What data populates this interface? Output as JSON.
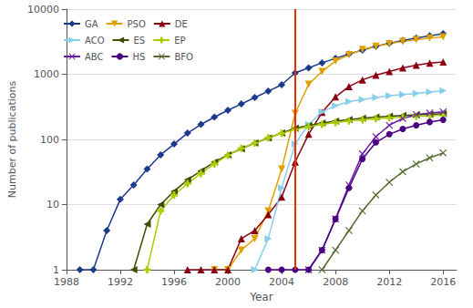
{
  "chart_data": {
    "type": "line",
    "xlabel": "Year",
    "ylabel": "Number of publications",
    "xlim": [
      1988,
      2017
    ],
    "xticks": [
      1988,
      1992,
      1996,
      2000,
      2004,
      2008,
      2012,
      2016
    ],
    "ylim": [
      1,
      10000
    ],
    "yticks": [
      1,
      10,
      100,
      1000,
      10000
    ],
    "log": "y",
    "grid": true,
    "legend": "upper left",
    "vlines": [
      {
        "x": 2005,
        "color": "#e63000"
      }
    ],
    "series": [
      {
        "name": "GA",
        "color": "#1a3a8c",
        "marker": "diamond",
        "x": [
          1989,
          1990,
          1991,
          1992,
          1993,
          1994,
          1995,
          1996,
          1997,
          1998,
          1999,
          2000,
          2001,
          2002,
          2003,
          2004,
          2005,
          2006,
          2007,
          2008,
          2009,
          2010,
          2011,
          2012,
          2013,
          2014,
          2015,
          2016
        ],
        "values": [
          1,
          1,
          4,
          12,
          20,
          35,
          58,
          85,
          125,
          170,
          220,
          280,
          350,
          440,
          550,
          690,
          1050,
          1250,
          1500,
          1750,
          2050,
          2350,
          2700,
          3000,
          3300,
          3600,
          3900,
          4200
        ]
      },
      {
        "name": "PSO",
        "color": "#e0a000",
        "marker": "triangle-down",
        "x": [
          1999,
          2000,
          2001,
          2002,
          2003,
          2004,
          2005,
          2006,
          2007,
          2008,
          2009,
          2010,
          2011,
          2012,
          2013,
          2014,
          2015,
          2016
        ],
        "values": [
          1,
          1,
          2,
          3,
          8,
          35,
          250,
          700,
          1100,
          1600,
          2000,
          2400,
          2700,
          2950,
          3200,
          3400,
          3600,
          3750
        ]
      },
      {
        "name": "DE",
        "color": "#8b0010",
        "marker": "triangle-up",
        "x": [
          1997,
          1998,
          1999,
          2000,
          2001,
          2002,
          2003,
          2004,
          2005,
          2006,
          2007,
          2008,
          2009,
          2010,
          2011,
          2012,
          2013,
          2014,
          2015,
          2016
        ],
        "values": [
          1,
          1,
          1,
          1,
          3,
          4,
          7,
          13,
          45,
          120,
          260,
          450,
          650,
          820,
          970,
          1100,
          1250,
          1380,
          1480,
          1550
        ]
      },
      {
        "name": "ACO",
        "color": "#87ceeb",
        "marker": "triangle-right",
        "x": [
          2002,
          2003,
          2004,
          2005,
          2006,
          2007,
          2008,
          2009,
          2010,
          2011,
          2012,
          2013,
          2014,
          2015,
          2016
        ],
        "values": [
          1,
          3,
          18,
          85,
          170,
          265,
          330,
          380,
          410,
          440,
          470,
          490,
          510,
          535,
          560
        ]
      },
      {
        "name": "ES",
        "color": "#3d4f00",
        "marker": "triangle-left",
        "x": [
          1993,
          1994,
          1995,
          1996,
          1997,
          1998,
          1999,
          2000,
          2001,
          2002,
          2003,
          2004,
          2005,
          2006,
          2007,
          2008,
          2009,
          2010,
          2011,
          2012,
          2013,
          2014,
          2015,
          2016
        ],
        "values": [
          1,
          5,
          10,
          16,
          24,
          33,
          45,
          58,
          72,
          88,
          105,
          125,
          148,
          163,
          178,
          191,
          202,
          212,
          220,
          227,
          233,
          238,
          243,
          248
        ]
      },
      {
        "name": "EP",
        "color": "#aacc00",
        "marker": "plus",
        "x": [
          1994,
          1995,
          1996,
          1997,
          1998,
          1999,
          2000,
          2001,
          2002,
          2003,
          2004,
          2005,
          2006,
          2007,
          2008,
          2009,
          2010,
          2011,
          2012,
          2013,
          2014,
          2015,
          2016
        ],
        "values": [
          1,
          8,
          14,
          21,
          30,
          42,
          57,
          73,
          88,
          106,
          124,
          142,
          157,
          170,
          182,
          192,
          200,
          208,
          215,
          221,
          226,
          231,
          236
        ]
      },
      {
        "name": "ABC",
        "color": "#6a1aaa",
        "marker": "x",
        "x": [
          2006,
          2007,
          2008,
          2009,
          2010,
          2011,
          2012,
          2013,
          2014,
          2015,
          2016
        ],
        "values": [
          1,
          2,
          6,
          20,
          60,
          110,
          165,
          210,
          240,
          255,
          265
        ]
      },
      {
        "name": "HS",
        "color": "#4b0082",
        "marker": "circle",
        "x": [
          2003,
          2004,
          2005,
          2006,
          2007,
          2008,
          2009,
          2010,
          2011,
          2012,
          2013,
          2014,
          2015,
          2016
        ],
        "values": [
          1,
          1,
          1,
          1,
          2,
          6,
          18,
          50,
          90,
          120,
          145,
          165,
          185,
          200
        ]
      },
      {
        "name": "BFO",
        "color": "#556b2f",
        "marker": "x",
        "x": [
          2007,
          2008,
          2009,
          2010,
          2011,
          2012,
          2013,
          2014,
          2015,
          2016
        ],
        "values": [
          1,
          2,
          4,
          8,
          14,
          22,
          32,
          42,
          52,
          62
        ]
      }
    ]
  }
}
